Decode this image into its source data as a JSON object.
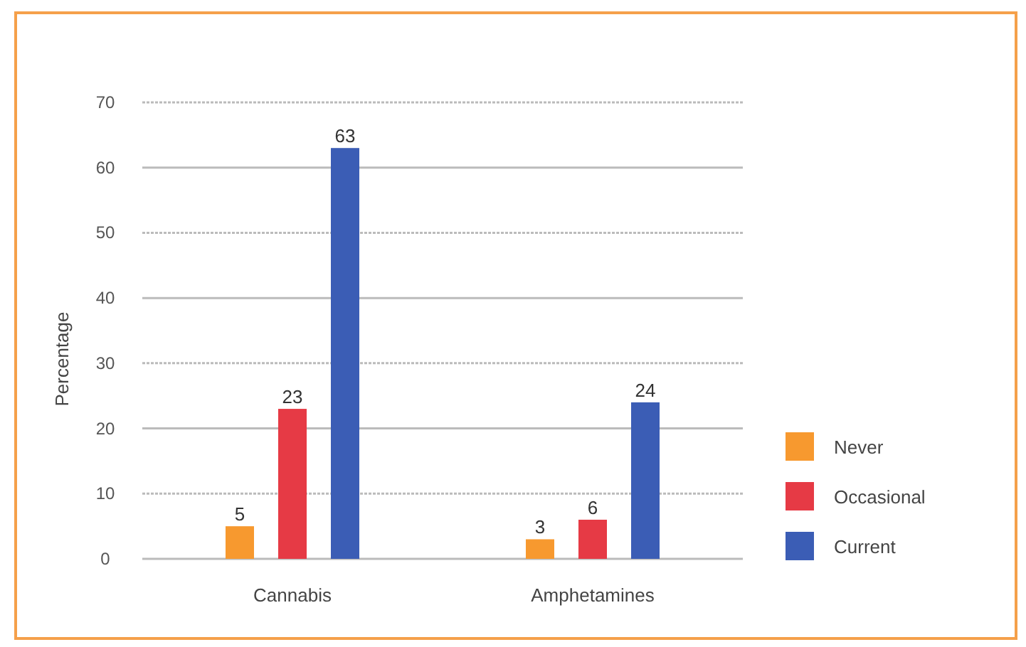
{
  "chart_data": {
    "type": "bar",
    "ylabel": "Percentage",
    "categories": [
      "Cannabis",
      "Amphetamines"
    ],
    "series": [
      {
        "name": "Never",
        "color": "#f7992f",
        "values": [
          5,
          3
        ]
      },
      {
        "name": "Occasional",
        "color": "#e63a45",
        "values": [
          23,
          6
        ]
      },
      {
        "name": "Current",
        "color": "#3b5db5",
        "values": [
          63,
          24
        ]
      }
    ],
    "ylim": [
      0,
      70
    ],
    "yticks": [
      0,
      10,
      20,
      30,
      40,
      50,
      60,
      70
    ],
    "grid": "y",
    "legend": "right",
    "data_labels": true
  }
}
